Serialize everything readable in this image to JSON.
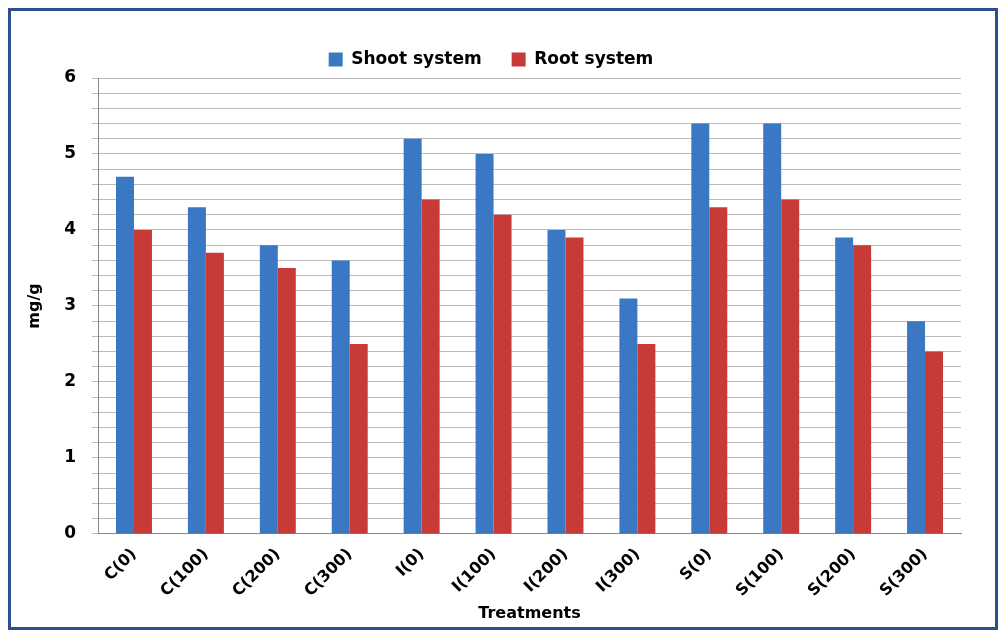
{
  "chart_data": {
    "type": "bar",
    "xlabel": "Treatments",
    "ylabel": "mg/g",
    "categories": [
      "C(0)",
      "C(100)",
      "C(200)",
      "C(300)",
      "I(0)",
      "I(100)",
      "I(200)",
      "I(300)",
      "S(0)",
      "S(100)",
      "S(200)",
      "S(300)"
    ],
    "series": [
      {
        "name": "Shoot system",
        "color": "#3a78c4",
        "values": [
          4.7,
          4.3,
          3.8,
          3.6,
          5.2,
          5.0,
          4.0,
          3.1,
          5.4,
          5.4,
          3.9,
          2.8
        ]
      },
      {
        "name": "Root system",
        "color": "#c83a38",
        "values": [
          4.0,
          3.7,
          3.5,
          2.5,
          4.4,
          4.2,
          3.9,
          2.5,
          4.3,
          4.4,
          3.8,
          2.4
        ]
      }
    ],
    "ylim": [
      0,
      6
    ],
    "yticks": [
      0,
      {
        "value": 0.2,
        "label": null
      },
      {
        "value": 0.4,
        "label": null
      },
      {
        "value": 0.6,
        "label": null
      },
      {
        "value": 0.8,
        "label": null
      },
      1,
      {
        "value": 1.2,
        "label": null
      },
      {
        "value": 1.4,
        "label": null
      },
      {
        "value": 1.6,
        "label": null
      },
      {
        "value": 1.8,
        "label": null
      },
      2,
      {
        "value": 2.2,
        "label": null
      },
      {
        "value": 2.4,
        "label": null
      },
      {
        "value": 2.6,
        "label": null
      },
      {
        "value": 2.8,
        "label": null
      },
      3,
      {
        "value": 3.2,
        "label": null
      },
      {
        "value": 3.4,
        "label": null
      },
      {
        "value": 3.6,
        "label": null
      },
      {
        "value": 3.8,
        "label": null
      },
      4,
      {
        "value": 4.2,
        "label": null
      },
      {
        "value": 4.4,
        "label": null
      },
      {
        "value": 4.6,
        "label": null
      },
      {
        "value": 4.8,
        "label": null
      },
      5,
      {
        "value": 5.2,
        "label": null
      },
      {
        "value": 5.4,
        "label": null
      },
      {
        "value": 5.6,
        "label": null
      },
      {
        "value": 5.8,
        "label": null
      },
      6
    ],
    "grid": "y",
    "legend": "top"
  }
}
